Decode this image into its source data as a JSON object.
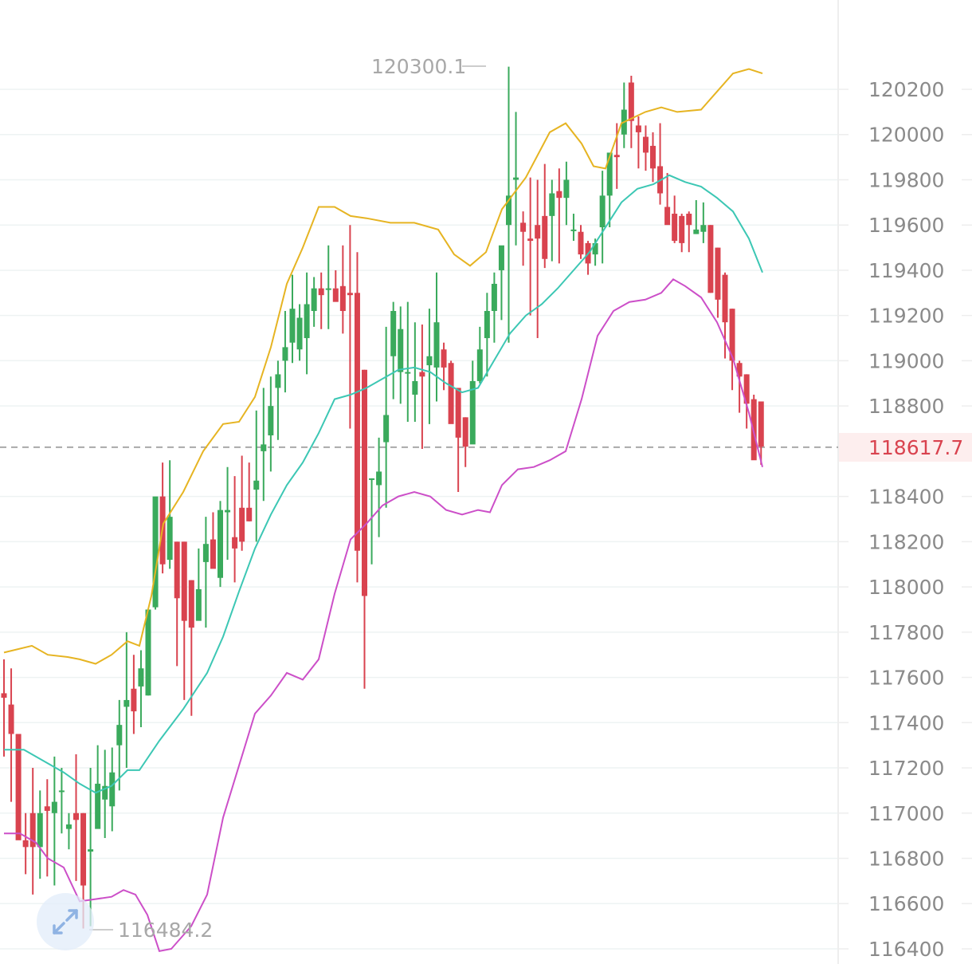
{
  "chart_data": {
    "type": "candlestick",
    "title": "",
    "xlabel": "",
    "ylabel": "",
    "ylim": [
      116380,
      120560
    ],
    "y_ticks": [
      120200,
      120000,
      119800,
      119600,
      119400,
      119200,
      119000,
      118800,
      118400,
      118200,
      118000,
      117800,
      117600,
      117400,
      117200,
      117000,
      116800,
      116600,
      116400
    ],
    "last_price": 118617.7,
    "last_price_label": "118617.7",
    "max_label": "120300.1",
    "min_label": "116484.2",
    "colors": {
      "up": "#3aaa5c",
      "down": "#d9434f",
      "upper_band": "#e6b422",
      "middle_band": "#3cc7b4",
      "lower_band": "#cc4fc8",
      "grid": "#eef3f3",
      "last_line": "#aaaaaa"
    },
    "x_start": 5,
    "x_step": 9.05,
    "candles": [
      [
        117530,
        117680,
        117250,
        117510
      ],
      [
        117480,
        117640,
        117050,
        117350
      ],
      [
        117350,
        117350,
        116900,
        116880
      ],
      [
        116880,
        117000,
        116730,
        116850
      ],
      [
        117000,
        117200,
        116640,
        116850
      ],
      [
        116850,
        117100,
        116710,
        117000
      ],
      [
        117030,
        117150,
        116720,
        117010
      ],
      [
        117000,
        117250,
        116680,
        117050
      ],
      [
        117100,
        117200,
        116910,
        117100
      ],
      [
        116930,
        117000,
        116840,
        116950
      ],
      [
        117000,
        117260,
        116700,
        116970
      ],
      [
        117000,
        117000,
        116490,
        116680
      ],
      [
        116830,
        117200,
        116500,
        116840
      ],
      [
        116930,
        117300,
        116980,
        117130
      ],
      [
        117060,
        117280,
        116890,
        117120
      ],
      [
        117030,
        117290,
        116920,
        117180
      ],
      [
        117300,
        117500,
        117100,
        117390
      ],
      [
        117470,
        117800,
        117200,
        117500
      ],
      [
        117550,
        117700,
        117350,
        117450
      ],
      [
        117560,
        117720,
        117380,
        117640
      ],
      [
        117520,
        117800,
        117520,
        117900
      ],
      [
        117910,
        118300,
        117900,
        118400
      ],
      [
        118400,
        118550,
        118060,
        118100
      ],
      [
        118120,
        118560,
        118080,
        118310
      ],
      [
        118200,
        118200,
        117650,
        117950
      ],
      [
        118200,
        118200,
        117500,
        117850
      ],
      [
        118030,
        118030,
        117430,
        117820
      ],
      [
        117850,
        118170,
        117930,
        117990
      ],
      [
        118110,
        118310,
        117820,
        118190
      ],
      [
        118210,
        118330,
        118160,
        118080
      ],
      [
        118040,
        118380,
        118000,
        118340
      ],
      [
        118330,
        118530,
        118120,
        118340
      ],
      [
        118220,
        118490,
        118020,
        118170
      ],
      [
        118350,
        118580,
        118160,
        118200
      ],
      [
        118350,
        118550,
        118290,
        118290
      ],
      [
        118430,
        118780,
        118200,
        118470
      ],
      [
        118600,
        118880,
        118380,
        118630
      ],
      [
        118670,
        118930,
        118510,
        118800
      ],
      [
        118880,
        119000,
        118650,
        118940
      ],
      [
        119000,
        119220,
        118860,
        119060
      ],
      [
        119080,
        119380,
        118990,
        119230
      ],
      [
        119050,
        119250,
        119000,
        119190
      ],
      [
        119100,
        119390,
        118940,
        119250
      ],
      [
        119220,
        119370,
        119150,
        119320
      ],
      [
        119320,
        119390,
        119140,
        119290
      ],
      [
        119320,
        119510,
        119140,
        119320
      ],
      [
        119320,
        119400,
        119320,
        119260
      ],
      [
        119330,
        119510,
        119120,
        119220
      ],
      [
        119300,
        119600,
        118700,
        119290
      ],
      [
        119300,
        119480,
        118020,
        118160
      ],
      [
        118960,
        118960,
        117550,
        117960
      ],
      [
        118480,
        118480,
        118100,
        118480
      ],
      [
        118450,
        118660,
        118220,
        118510
      ],
      [
        118640,
        119150,
        118350,
        118760
      ],
      [
        119020,
        119260,
        118830,
        119220
      ],
      [
        118950,
        119240,
        118810,
        119140
      ],
      [
        118950,
        119260,
        118730,
        118950
      ],
      [
        118850,
        119170,
        118730,
        118910
      ],
      [
        118950,
        119160,
        118610,
        118930
      ],
      [
        118980,
        119230,
        118720,
        119020
      ],
      [
        118970,
        119390,
        118820,
        119170
      ],
      [
        119050,
        119080,
        118870,
        118970
      ],
      [
        118990,
        119000,
        118800,
        118720
      ],
      [
        118880,
        118880,
        118420,
        118660
      ],
      [
        118750,
        118750,
        118530,
        118620
      ],
      [
        118630,
        119000,
        118740,
        118910
      ],
      [
        118910,
        119150,
        118900,
        119050
      ],
      [
        119100,
        119300,
        118930,
        119220
      ],
      [
        119220,
        119390,
        119080,
        119340
      ],
      [
        119400,
        119500,
        119180,
        119510
      ],
      [
        119600,
        120300,
        119080,
        119730
      ],
      [
        119800,
        120100,
        119510,
        119810
      ],
      [
        119610,
        119660,
        119420,
        119570
      ],
      [
        119540,
        119810,
        119200,
        119530
      ],
      [
        119600,
        119800,
        119100,
        119540
      ],
      [
        119640,
        119870,
        119410,
        119450
      ],
      [
        119640,
        119800,
        119440,
        119740
      ],
      [
        119750,
        119850,
        119430,
        119720
      ],
      [
        119720,
        119880,
        119600,
        119800
      ],
      [
        119580,
        119650,
        119530,
        119580
      ],
      [
        119570,
        119600,
        119450,
        119470
      ],
      [
        119520,
        119530,
        119380,
        119430
      ],
      [
        119470,
        119540,
        119420,
        119520
      ],
      [
        119590,
        119840,
        119430,
        119730
      ],
      [
        119730,
        119870,
        119590,
        119920
      ],
      [
        119910,
        120050,
        119760,
        119900
      ],
      [
        120000,
        120230,
        119940,
        120110
      ],
      [
        120230,
        120260,
        119940,
        120060
      ],
      [
        120040,
        120080,
        119850,
        120010
      ],
      [
        119990,
        120040,
        119840,
        119920
      ],
      [
        119950,
        120010,
        119790,
        119850
      ],
      [
        119860,
        120050,
        119690,
        119740
      ],
      [
        119680,
        119830,
        119620,
        119600
      ],
      [
        119650,
        119730,
        119520,
        119530
      ],
      [
        119640,
        119650,
        119480,
        119520
      ],
      [
        119650,
        119660,
        119480,
        119600
      ],
      [
        119560,
        119710,
        119560,
        119580
      ],
      [
        119570,
        119700,
        119520,
        119600
      ],
      [
        119600,
        119600,
        119300,
        119300
      ],
      [
        119500,
        119500,
        119190,
        119270
      ],
      [
        119380,
        119390,
        119010,
        119170
      ],
      [
        119230,
        119230,
        118870,
        119000
      ],
      [
        118990,
        119000,
        118770,
        118930
      ],
      [
        118940,
        118940,
        118700,
        118810
      ],
      [
        118830,
        118850,
        118580,
        118560
      ],
      [
        118820,
        118820,
        118540,
        118620
      ]
    ],
    "upper_band": [
      [
        5,
        117710
      ],
      [
        40,
        117740
      ],
      [
        60,
        117700
      ],
      [
        85,
        117690
      ],
      [
        100,
        117680
      ],
      [
        120,
        117660
      ],
      [
        140,
        117700
      ],
      [
        160,
        117760
      ],
      [
        175,
        117740
      ],
      [
        190,
        117960
      ],
      [
        205,
        118280
      ],
      [
        230,
        118420
      ],
      [
        255,
        118600
      ],
      [
        280,
        118720
      ],
      [
        300,
        118730
      ],
      [
        320,
        118840
      ],
      [
        340,
        119060
      ],
      [
        360,
        119340
      ],
      [
        380,
        119500
      ],
      [
        400,
        119680
      ],
      [
        420,
        119680
      ],
      [
        440,
        119640
      ],
      [
        460,
        119630
      ],
      [
        490,
        119610
      ],
      [
        520,
        119610
      ],
      [
        550,
        119580
      ],
      [
        570,
        119470
      ],
      [
        590,
        119420
      ],
      [
        610,
        119480
      ],
      [
        630,
        119670
      ],
      [
        660,
        119810
      ],
      [
        690,
        120010
      ],
      [
        710,
        120050
      ],
      [
        730,
        119960
      ],
      [
        745,
        119860
      ],
      [
        760,
        119850
      ],
      [
        780,
        120050
      ],
      [
        810,
        120100
      ],
      [
        830,
        120120
      ],
      [
        850,
        120100
      ],
      [
        880,
        120110
      ],
      [
        900,
        120190
      ],
      [
        920,
        120270
      ],
      [
        940,
        120290
      ],
      [
        957,
        120270
      ]
    ],
    "middle_band": [
      [
        5,
        117280
      ],
      [
        30,
        117280
      ],
      [
        55,
        117230
      ],
      [
        80,
        117180
      ],
      [
        100,
        117130
      ],
      [
        120,
        117090
      ],
      [
        140,
        117120
      ],
      [
        160,
        117190
      ],
      [
        175,
        117190
      ],
      [
        200,
        117320
      ],
      [
        230,
        117460
      ],
      [
        260,
        117620
      ],
      [
        280,
        117780
      ],
      [
        300,
        117980
      ],
      [
        320,
        118170
      ],
      [
        340,
        118320
      ],
      [
        360,
        118450
      ],
      [
        380,
        118550
      ],
      [
        400,
        118680
      ],
      [
        420,
        118830
      ],
      [
        440,
        118850
      ],
      [
        460,
        118880
      ],
      [
        480,
        118920
      ],
      [
        500,
        118960
      ],
      [
        520,
        118970
      ],
      [
        540,
        118950
      ],
      [
        560,
        118900
      ],
      [
        580,
        118860
      ],
      [
        600,
        118880
      ],
      [
        620,
        119000
      ],
      [
        640,
        119120
      ],
      [
        660,
        119200
      ],
      [
        680,
        119250
      ],
      [
        700,
        119320
      ],
      [
        720,
        119400
      ],
      [
        740,
        119480
      ],
      [
        760,
        119590
      ],
      [
        780,
        119700
      ],
      [
        800,
        119760
      ],
      [
        820,
        119780
      ],
      [
        840,
        119820
      ],
      [
        860,
        119790
      ],
      [
        880,
        119770
      ],
      [
        900,
        119720
      ],
      [
        920,
        119660
      ],
      [
        940,
        119540
      ],
      [
        957,
        119390
      ]
    ],
    "lower_band": [
      [
        5,
        116910
      ],
      [
        25,
        116910
      ],
      [
        45,
        116870
      ],
      [
        60,
        116800
      ],
      [
        80,
        116760
      ],
      [
        100,
        116610
      ],
      [
        120,
        116620
      ],
      [
        140,
        116630
      ],
      [
        155,
        116660
      ],
      [
        170,
        116640
      ],
      [
        185,
        116550
      ],
      [
        200,
        116390
      ],
      [
        215,
        116400
      ],
      [
        240,
        116500
      ],
      [
        260,
        116640
      ],
      [
        280,
        116980
      ],
      [
        300,
        117210
      ],
      [
        320,
        117440
      ],
      [
        340,
        117520
      ],
      [
        360,
        117620
      ],
      [
        380,
        117590
      ],
      [
        400,
        117680
      ],
      [
        420,
        117970
      ],
      [
        440,
        118210
      ],
      [
        460,
        118280
      ],
      [
        480,
        118360
      ],
      [
        500,
        118400
      ],
      [
        520,
        118420
      ],
      [
        540,
        118400
      ],
      [
        560,
        118340
      ],
      [
        580,
        118320
      ],
      [
        600,
        118340
      ],
      [
        615,
        118330
      ],
      [
        630,
        118450
      ],
      [
        650,
        118520
      ],
      [
        670,
        118530
      ],
      [
        690,
        118560
      ],
      [
        710,
        118600
      ],
      [
        730,
        118830
      ],
      [
        750,
        119110
      ],
      [
        770,
        119220
      ],
      [
        790,
        119260
      ],
      [
        810,
        119270
      ],
      [
        830,
        119300
      ],
      [
        845,
        119360
      ],
      [
        860,
        119330
      ],
      [
        880,
        119280
      ],
      [
        900,
        119170
      ],
      [
        920,
        119010
      ],
      [
        940,
        118770
      ],
      [
        957,
        118530
      ]
    ]
  },
  "controls": {
    "expand_icon": "expand-arrows-icon"
  }
}
